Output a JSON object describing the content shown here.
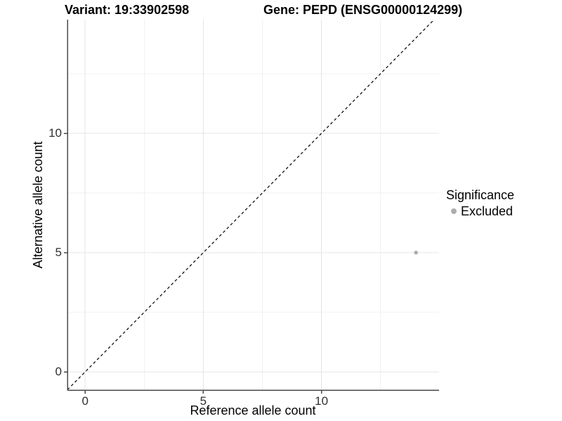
{
  "header": {
    "variant_title": "Variant: 19:33902598",
    "gene_title": "Gene: PEPD (ENSG00000124299)"
  },
  "axes": {
    "x_label": "Reference allele count",
    "y_label": "Alternative allele count"
  },
  "legend": {
    "title": "Significance",
    "items": [
      {
        "label": "Excluded",
        "color": "#adadad"
      }
    ]
  },
  "chart_data": {
    "type": "scatter",
    "title": "Variant: 19:33902598 — Gene: PEPD (ENSG00000124299)",
    "xlabel": "Reference allele count",
    "ylabel": "Alternative allele count",
    "xlim": [
      -0.75,
      15
    ],
    "ylim": [
      -0.75,
      14.75
    ],
    "x_major_ticks": [
      0,
      5,
      10
    ],
    "y_major_ticks": [
      0,
      5,
      10
    ],
    "x_minor_gridlines": [
      2.5,
      7.5,
      12.5
    ],
    "y_minor_gridlines": [
      2.5,
      7.5,
      12.5
    ],
    "grid": "major and minor gridlines on white panel",
    "legend_position": "right",
    "series": [
      {
        "name": "Excluded",
        "color": "#adadad",
        "marker": "circle",
        "points": [
          {
            "x": 14,
            "y": 5
          }
        ]
      }
    ],
    "reference_line": {
      "kind": "identity y=x",
      "style": "dashed",
      "color": "#000000"
    }
  },
  "colors": {
    "background": "#ffffff",
    "axis_line": "#4a4a4a",
    "tick_label": "#303030",
    "grid_major": "#e4e4e4",
    "grid_minor": "#f1f1f1",
    "excluded_gray": "#adadad",
    "dashed_line": "#000000"
  }
}
